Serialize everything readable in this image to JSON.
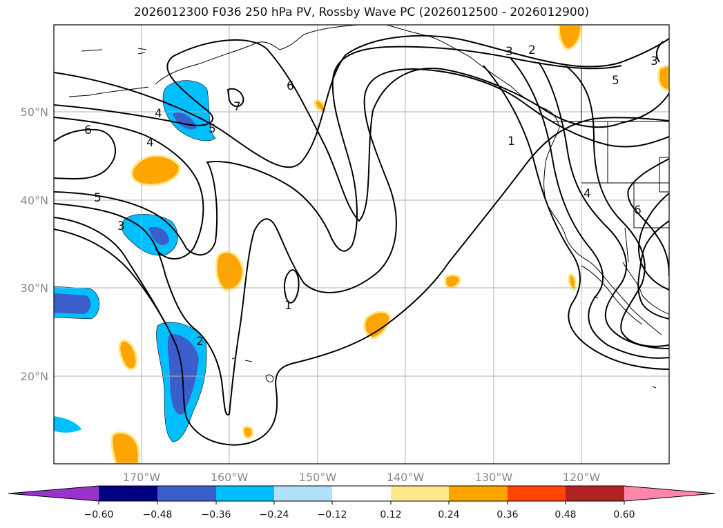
{
  "title": "2026012300 F036 250 hPa PV, Rossby Wave PC (2026012500 - 2026012900)",
  "map": {
    "lat_labels": [
      "50°N",
      "40°N",
      "30°N",
      "20°N"
    ],
    "lon_labels": [
      "170°W",
      "160°W",
      "150°W",
      "140°W",
      "130°W",
      "120°W"
    ],
    "contour_labels": [
      "6",
      "4",
      "4",
      "5",
      "3",
      "7",
      "6",
      "5",
      "1",
      "3",
      "2",
      "1",
      "4",
      "6",
      "3",
      "5",
      "2"
    ],
    "colors": {
      "coastline": "#000000",
      "gridline": "#b0b0b0",
      "contour": "#000000"
    }
  },
  "colorbar": {
    "tick_labels": [
      "−0.60",
      "−0.48",
      "−0.36",
      "−0.24",
      "−0.12",
      "0.12",
      "0.24",
      "0.36",
      "0.48",
      "0.60"
    ],
    "colors": [
      "#9933cc",
      "#000080",
      "#3a5fcd",
      "#00bfff",
      "#b0e0fa",
      "#ffffff",
      "#ffe88a",
      "#ffa500",
      "#ff4500",
      "#b22222",
      "#ff88aa"
    ]
  }
}
